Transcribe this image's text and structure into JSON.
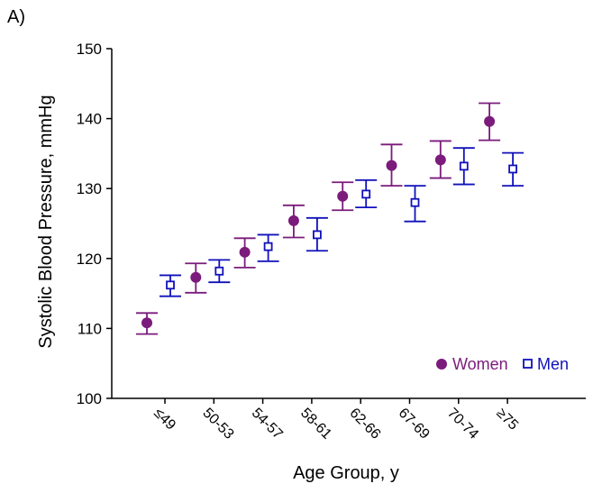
{
  "panel_label": "A)",
  "chart_data": {
    "type": "scatter",
    "xlabel": "Age Group, y",
    "ylabel": "Systolic Blood Pressure, mmHg",
    "categories": [
      "≤49",
      "50-53",
      "54-57",
      "58-61",
      "62-66",
      "67-69",
      "70-74",
      "≥75"
    ],
    "ylim": [
      100,
      150
    ],
    "yticks": [
      100,
      110,
      120,
      130,
      140,
      150
    ],
    "error_bars": true,
    "legend_position": "bottom-right",
    "series": [
      {
        "name": "Women",
        "marker": "filled-circle",
        "color": "#7B1B7B",
        "values": [
          110.8,
          117.3,
          120.9,
          125.4,
          128.9,
          133.3,
          134.1,
          139.6
        ],
        "lower": [
          109.2,
          115.1,
          118.7,
          123.0,
          126.9,
          130.4,
          131.5,
          136.9
        ],
        "upper": [
          112.2,
          119.3,
          122.9,
          127.6,
          130.9,
          136.3,
          136.8,
          142.2
        ]
      },
      {
        "name": "Men",
        "marker": "open-square",
        "color": "#1111BB",
        "values": [
          116.2,
          118.2,
          121.7,
          123.4,
          129.2,
          128.0,
          133.2,
          132.8
        ],
        "lower": [
          114.6,
          116.6,
          119.6,
          121.1,
          127.3,
          125.3,
          130.6,
          130.4
        ],
        "upper": [
          117.6,
          119.8,
          123.4,
          125.8,
          131.2,
          130.4,
          135.8,
          135.1
        ]
      }
    ]
  }
}
